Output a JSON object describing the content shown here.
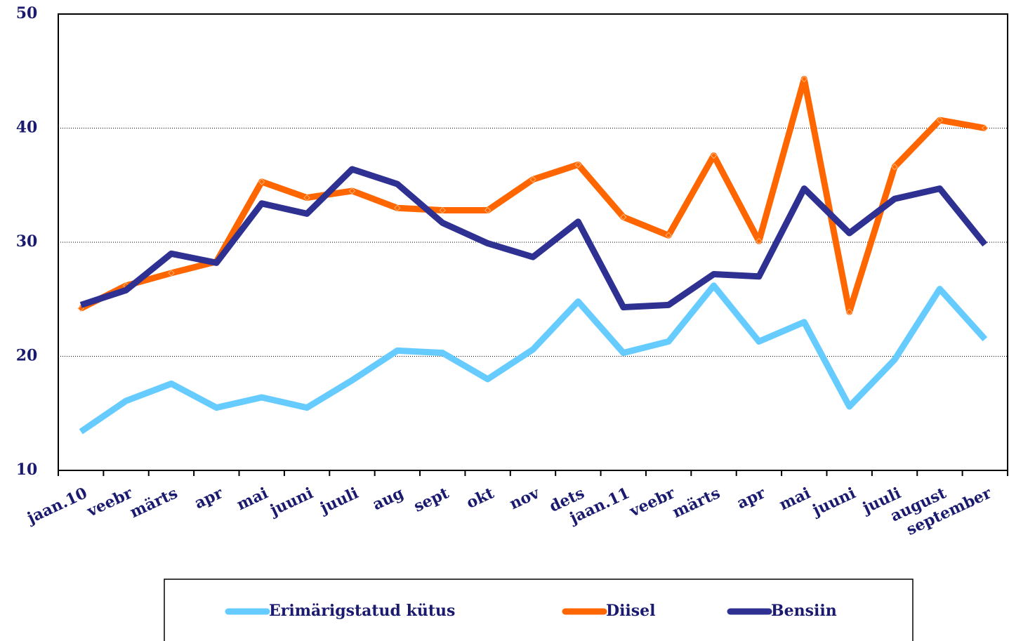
{
  "chart_data": {
    "type": "line",
    "categories": [
      "jaan.10",
      "veebr",
      "märts",
      "apr",
      "mai",
      "juuni",
      "juuli",
      "aug",
      "sept",
      "okt",
      "nov",
      "dets",
      "jaan.11",
      "veebr",
      "märts",
      "apr",
      "mai",
      "juuni",
      "juuli",
      "august",
      "september"
    ],
    "series": [
      {
        "name": "Erimärigstatud kütus",
        "color": "#66ccff",
        "values": [
          13.4,
          16.1,
          17.6,
          15.5,
          16.4,
          15.5,
          17.9,
          20.5,
          20.3,
          18.0,
          20.6,
          24.8,
          20.3,
          21.3,
          26.2,
          21.3,
          23.0,
          15.6,
          19.7,
          25.9,
          21.5
        ]
      },
      {
        "name": "Diisel",
        "color": "#ff6600",
        "marker": "diamond",
        "values": [
          24.2,
          26.2,
          27.3,
          28.3,
          35.3,
          33.9,
          34.5,
          33.0,
          32.8,
          32.8,
          35.5,
          36.8,
          32.2,
          30.6,
          37.6,
          30.1,
          44.3,
          23.9,
          36.6,
          40.7,
          40.0
        ]
      },
      {
        "name": "Bensiin",
        "color": "#2e3192",
        "values": [
          24.5,
          25.8,
          29.0,
          28.2,
          33.4,
          32.5,
          36.4,
          35.1,
          31.7,
          29.9,
          28.7,
          31.8,
          24.3,
          24.5,
          27.2,
          27.0,
          34.7,
          30.8,
          33.8,
          34.7,
          29.8
        ]
      }
    ],
    "ylim": [
      10,
      50
    ],
    "yticks": [
      10,
      20,
      30,
      40,
      50
    ],
    "grid": true,
    "legend": "bottom"
  }
}
